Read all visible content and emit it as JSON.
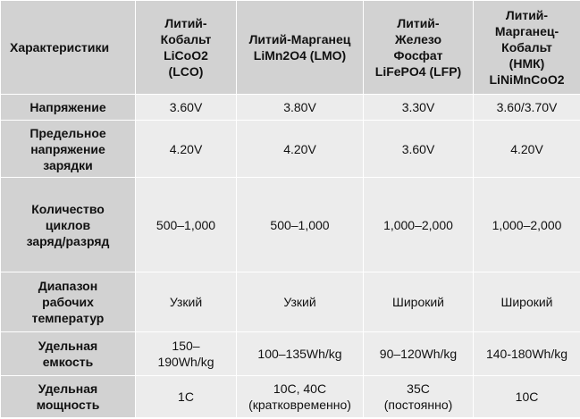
{
  "header": {
    "corner": "Характеристики",
    "columns": [
      [
        "Литий-",
        "Кобальт",
        "LiCoO2",
        "(LCO)"
      ],
      [
        "Литий-Марганец",
        "LiMn2O4 (LMO)"
      ],
      [
        "Литий-",
        "Железо",
        "Фосфат",
        "LiFePO4 (LFP)"
      ],
      [
        "Литий-",
        "Марганец-",
        "Кобальт",
        "(НМК)",
        "LiNiMnCoO2"
      ]
    ]
  },
  "rows": [
    {
      "label": [
        "Напряжение"
      ],
      "cells": [
        [
          "3.60V"
        ],
        [
          "3.80V"
        ],
        [
          "3.30V"
        ],
        [
          "3.60/3.70V"
        ]
      ]
    },
    {
      "label": [
        "Предельное",
        "напряжение",
        "зарядки"
      ],
      "cells": [
        [
          "4.20V"
        ],
        [
          "4.20V"
        ],
        [
          "3.60V"
        ],
        [
          "4.20V"
        ]
      ]
    },
    {
      "label": [
        "Количество",
        "циклов",
        "заряд/разряд"
      ],
      "cells": [
        [
          "500–1,000"
        ],
        [
          "500–1,000"
        ],
        [
          "1,000–2,000"
        ],
        [
          "1,000–2,000"
        ]
      ]
    },
    {
      "label": [
        "Диапазон",
        "рабочих",
        "температур"
      ],
      "cells": [
        [
          "Узкий"
        ],
        [
          "Узкий"
        ],
        [
          "Широкий"
        ],
        [
          "Широкий"
        ]
      ]
    },
    {
      "label": [
        "Удельная",
        "емкость"
      ],
      "cells": [
        [
          "150–",
          "190Wh/kg"
        ],
        [
          "100–135Wh/kg"
        ],
        [
          "90–120Wh/kg"
        ],
        [
          "140-180Wh/kg"
        ]
      ]
    },
    {
      "label": [
        "Удельная",
        "мощность"
      ],
      "cells": [
        [
          "1C"
        ],
        [
          "10C, 40C",
          "(кратковременно)"
        ],
        [
          "35C",
          "(постоянно)"
        ],
        [
          "10C"
        ]
      ]
    }
  ]
}
